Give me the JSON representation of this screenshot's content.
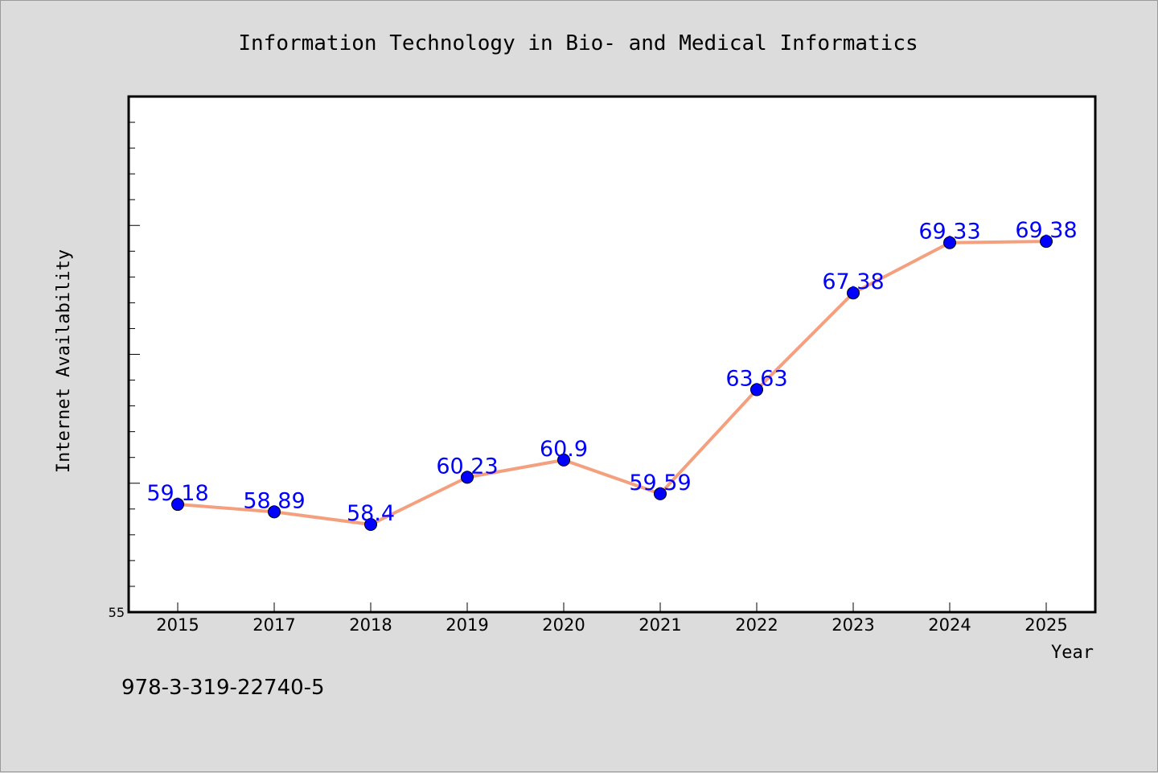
{
  "chart_data": {
    "type": "line",
    "title": "Information Technology in Bio- and Medical Informatics",
    "xlabel": "Year",
    "ylabel": "Internet Availability",
    "categories": [
      "2015",
      "2017",
      "2018",
      "2019",
      "2020",
      "2021",
      "2022",
      "2023",
      "2024",
      "2025"
    ],
    "values": [
      59.18,
      58.89,
      58.4,
      60.23,
      60.9,
      59.59,
      63.63,
      67.38,
      69.33,
      69.38
    ],
    "data_labels": [
      "59.18",
      "58.89",
      "58.4",
      "60.23",
      "60.9",
      "59.59",
      "63.63",
      "67.38",
      "69.33",
      "69.38"
    ],
    "ylim": [
      55,
      75
    ],
    "y_tick_labels": [
      "55"
    ],
    "grid": false,
    "legend": "none",
    "line_color": "#f4a07f",
    "marker_color": "#0000ff",
    "label_color": "#0000ff",
    "plot_background": "#ffffff",
    "page_background": "#dcdcdc"
  },
  "footer": {
    "isbn": "978-3-319-22740-5"
  }
}
